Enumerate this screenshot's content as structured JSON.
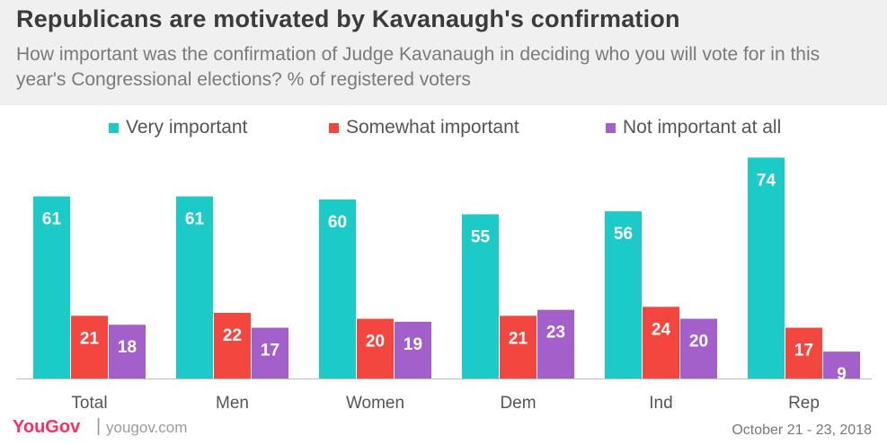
{
  "title": "Republicans are motivated by Kavanaugh's confirmation",
  "subtitle": "How important was the confirmation of Judge Kavanaugh in deciding who you will vote for in this year's Congressional elections? % of registered voters",
  "footer": {
    "brand": "YouGov",
    "separator": "|",
    "site": "yougov.com",
    "date": "October 21 - 23, 2018"
  },
  "colors": {
    "very": "#1ccbc8",
    "somewhat": "#f2463e",
    "not": "#a35fca",
    "brand": "#ff2e60"
  },
  "chart_data": {
    "type": "bar",
    "title": "Republicans are motivated by Kavanaugh's confirmation",
    "xlabel": "",
    "ylabel": "% of registered voters",
    "ylim": [
      0,
      80
    ],
    "grid": false,
    "legend_position": "top",
    "categories": [
      "Total",
      "Men",
      "Women",
      "Dem",
      "Ind",
      "Rep"
    ],
    "series": [
      {
        "name": "Very important",
        "color": "#1ccbc8",
        "values": [
          61,
          61,
          60,
          55,
          56,
          74
        ]
      },
      {
        "name": "Somewhat important",
        "color": "#f2463e",
        "values": [
          21,
          22,
          20,
          21,
          24,
          17
        ]
      },
      {
        "name": "Not important at all",
        "color": "#a35fca",
        "values": [
          18,
          17,
          19,
          23,
          20,
          9
        ]
      }
    ]
  }
}
